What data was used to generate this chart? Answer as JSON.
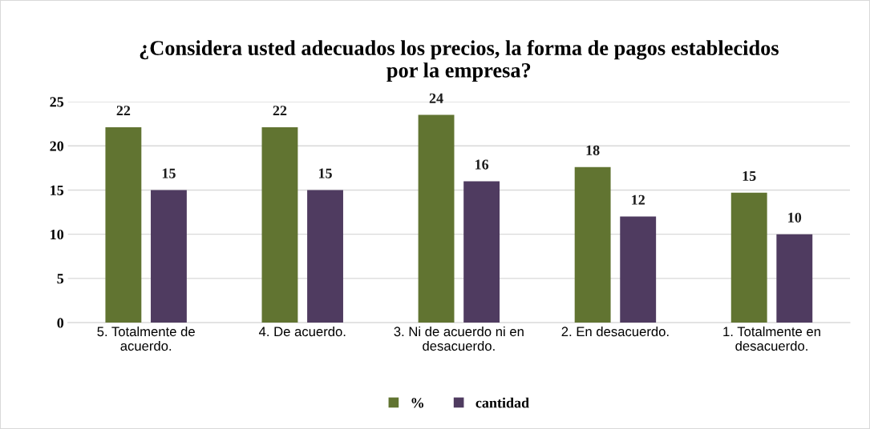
{
  "chart_data": {
    "type": "bar",
    "title": "¿Considera usted adecuados los precios, la forma de pagos establecidos\npor la empresa?",
    "categories": [
      "5. Totalmente de\nacuerdo.",
      "4. De acuerdo.",
      "3. Ni de acuerdo ni en\ndesacuerdo.",
      "2. En desacuerdo.",
      "1. Totalmente en\ndesacuerdo."
    ],
    "series": [
      {
        "name": "%",
        "color": "#617431",
        "values": [
          22.1,
          22.1,
          23.5,
          17.6,
          14.7
        ],
        "value_labels": [
          "22",
          "22",
          "24",
          "18",
          "15"
        ]
      },
      {
        "name": "cantidad",
        "color": "#4f3b60",
        "values": [
          15,
          15,
          16,
          12,
          10
        ],
        "value_labels": [
          "15",
          "15",
          "16",
          "12",
          "10"
        ]
      }
    ],
    "ylim": [
      0,
      25
    ],
    "yticks": [
      0,
      5,
      10,
      15,
      20,
      25
    ],
    "grid": "y",
    "legend": "bottom"
  }
}
